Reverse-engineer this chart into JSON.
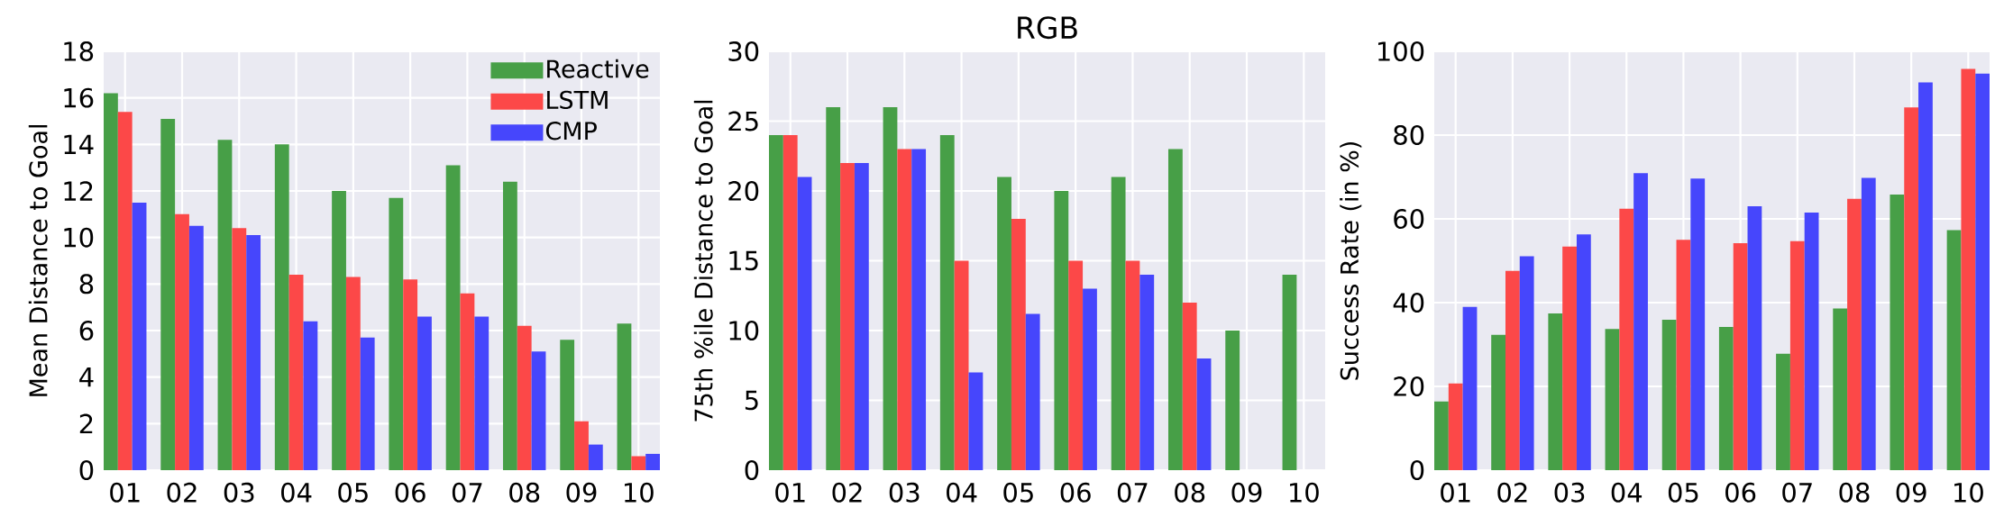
{
  "chart_data": [
    {
      "type": "bar",
      "ylabel": "Mean Distance to Goal",
      "categories": [
        "01",
        "02",
        "03",
        "04",
        "05",
        "06",
        "07",
        "08",
        "09",
        "10"
      ],
      "ylim": [
        0,
        18
      ],
      "yticks": [
        0,
        2,
        4,
        6,
        8,
        10,
        12,
        14,
        16,
        18
      ],
      "grid": true,
      "legend": "top right",
      "series": [
        {
          "name": "Reactive",
          "color": "#479f47",
          "values": [
            16.2,
            15.1,
            14.2,
            14.0,
            12.0,
            11.7,
            13.1,
            12.4,
            5.6,
            6.3
          ]
        },
        {
          "name": "LSTM",
          "color": "#fc4848",
          "values": [
            15.4,
            11.0,
            10.4,
            8.4,
            8.3,
            8.2,
            7.6,
            6.2,
            2.1,
            0.6
          ]
        },
        {
          "name": "CMP",
          "color": "#4646fc",
          "values": [
            11.5,
            10.5,
            10.1,
            6.4,
            5.7,
            6.6,
            6.6,
            5.1,
            1.1,
            0.7
          ]
        }
      ]
    },
    {
      "type": "bar",
      "title": "RGB",
      "ylabel": "75th %ile Distance to Goal",
      "categories": [
        "01",
        "02",
        "03",
        "04",
        "05",
        "06",
        "07",
        "08",
        "09",
        "10"
      ],
      "ylim": [
        0,
        30
      ],
      "yticks": [
        0,
        5,
        10,
        15,
        20,
        25,
        30
      ],
      "grid": true,
      "series": [
        {
          "color": "#479f47",
          "values": [
            24,
            26,
            26,
            24,
            21,
            20,
            21,
            23,
            10,
            14
          ]
        },
        {
          "color": "#fc4848",
          "values": [
            24,
            22,
            23,
            15,
            18,
            15,
            15,
            12,
            null,
            null
          ]
        },
        {
          "color": "#4646fc",
          "values": [
            21,
            22,
            23,
            7,
            11.2,
            13,
            14,
            8,
            null,
            null
          ]
        }
      ]
    },
    {
      "type": "bar",
      "ylabel": "Success Rate (in %)",
      "categories": [
        "01",
        "02",
        "03",
        "04",
        "05",
        "06",
        "07",
        "08",
        "09",
        "10"
      ],
      "ylim": [
        0,
        100
      ],
      "yticks": [
        0,
        20,
        40,
        60,
        80,
        100
      ],
      "grid": true,
      "series": [
        {
          "color": "#479f47",
          "values": [
            16.4,
            32.3,
            37.4,
            33.7,
            35.9,
            34.2,
            27.8,
            38.6,
            65.8,
            57.3
          ]
        },
        {
          "color": "#fc4848",
          "values": [
            20.7,
            47.6,
            53.4,
            62.4,
            55.0,
            54.2,
            54.7,
            64.8,
            86.6,
            95.8
          ]
        },
        {
          "color": "#4646fc",
          "values": [
            39.0,
            51.1,
            56.3,
            70.9,
            69.6,
            63.0,
            61.5,
            69.8,
            92.6,
            94.7
          ]
        }
      ]
    }
  ]
}
